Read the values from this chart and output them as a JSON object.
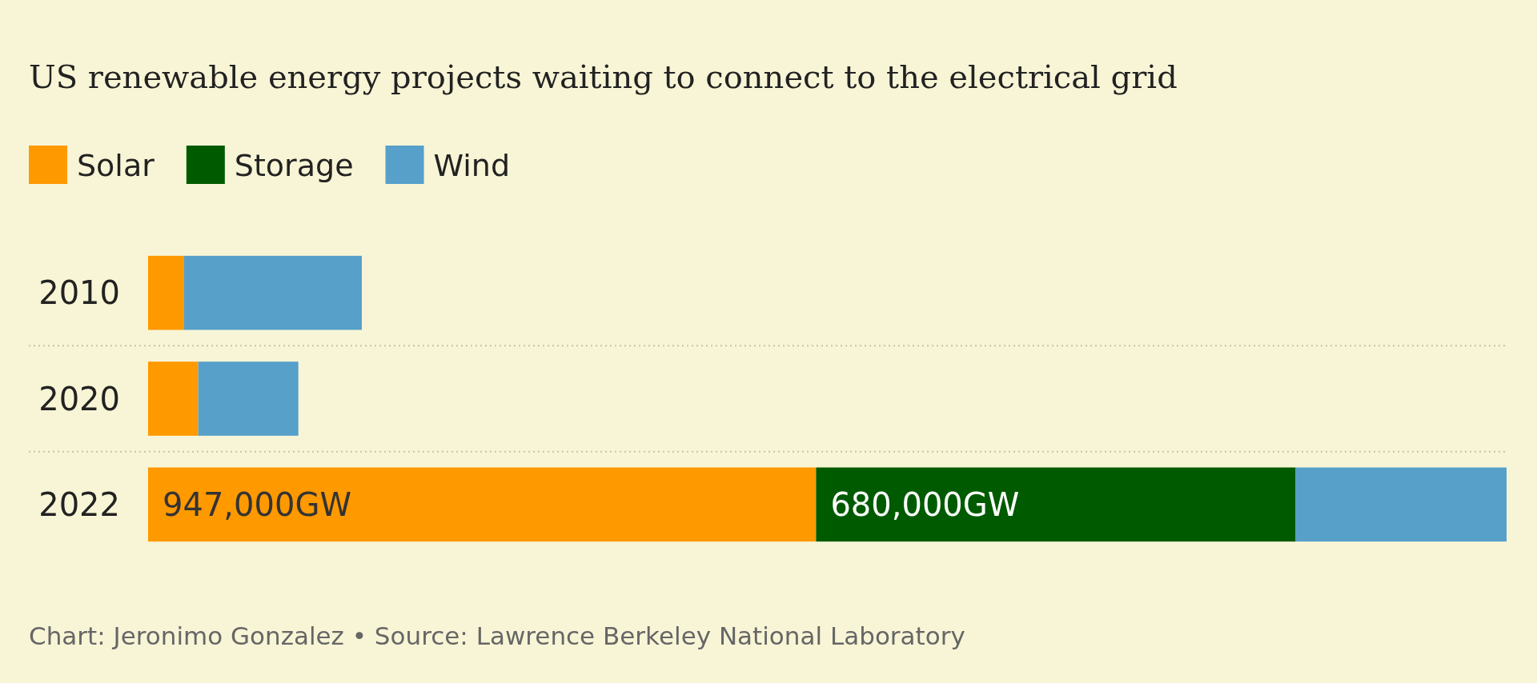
{
  "chart_data": {
    "type": "bar",
    "orientation": "horizontal",
    "stacked": true,
    "title": "US renewable energy projects waiting to connect to the electrical grid",
    "categories": [
      "2010",
      "2020",
      "2022"
    ],
    "series": [
      {
        "name": "Solar",
        "color": "#ff9900",
        "values": [
          51000,
          71000,
          947000
        ],
        "value_labels": [
          null,
          null,
          "947,000GW"
        ]
      },
      {
        "name": "Storage",
        "color": "#005a00",
        "values": [
          0,
          0,
          680000
        ],
        "value_labels": [
          null,
          null,
          "680,000GW"
        ]
      },
      {
        "name": "Wind",
        "color": "#56a0ca",
        "values": [
          252000,
          142000,
          299000
        ],
        "value_labels": [
          null,
          null,
          null
        ]
      }
    ],
    "grid": "y",
    "legend": "top left",
    "annotations": [
      "Chart: Jeronimo Gonzalez • Source: Lawrence Berkeley National Laboratory"
    ]
  }
}
